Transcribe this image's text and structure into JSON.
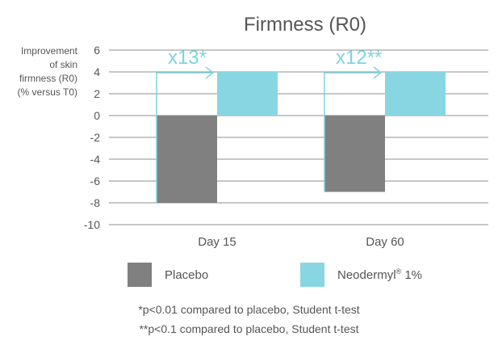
{
  "chart_data": {
    "type": "bar",
    "title": "Firmness (R0)",
    "ylabel_lines": [
      "Improvement",
      "of skin",
      "firmness (R0)",
      "(% versus T0)"
    ],
    "categories": [
      "Day 15",
      "Day 60"
    ],
    "ylim": [
      -10,
      6
    ],
    "yticks": [
      6,
      4,
      2,
      0,
      -2,
      -4,
      -6,
      -8,
      -10
    ],
    "grid": true,
    "series": [
      {
        "name": "Placebo",
        "color": "#808080",
        "values": [
          -8,
          -7
        ]
      },
      {
        "name": "Neodermyl® 1%",
        "color": "#87d6e2",
        "values": [
          4,
          4
        ]
      }
    ],
    "annotations": [
      {
        "category": "Day 15",
        "text": "x13*"
      },
      {
        "category": "Day 60",
        "text": "x12**"
      }
    ],
    "legend": {
      "placement": "bottom",
      "placebo_label": "Placebo",
      "neodermyl_label_main": "Neodermyl",
      "neodermyl_label_sup": "®",
      "neodermyl_label_tail": " 1%"
    },
    "footnotes": [
      "*p<0.01 compared to placebo, Student t-test",
      "**p<0.1 compared to placebo, Student t-test"
    ]
  }
}
